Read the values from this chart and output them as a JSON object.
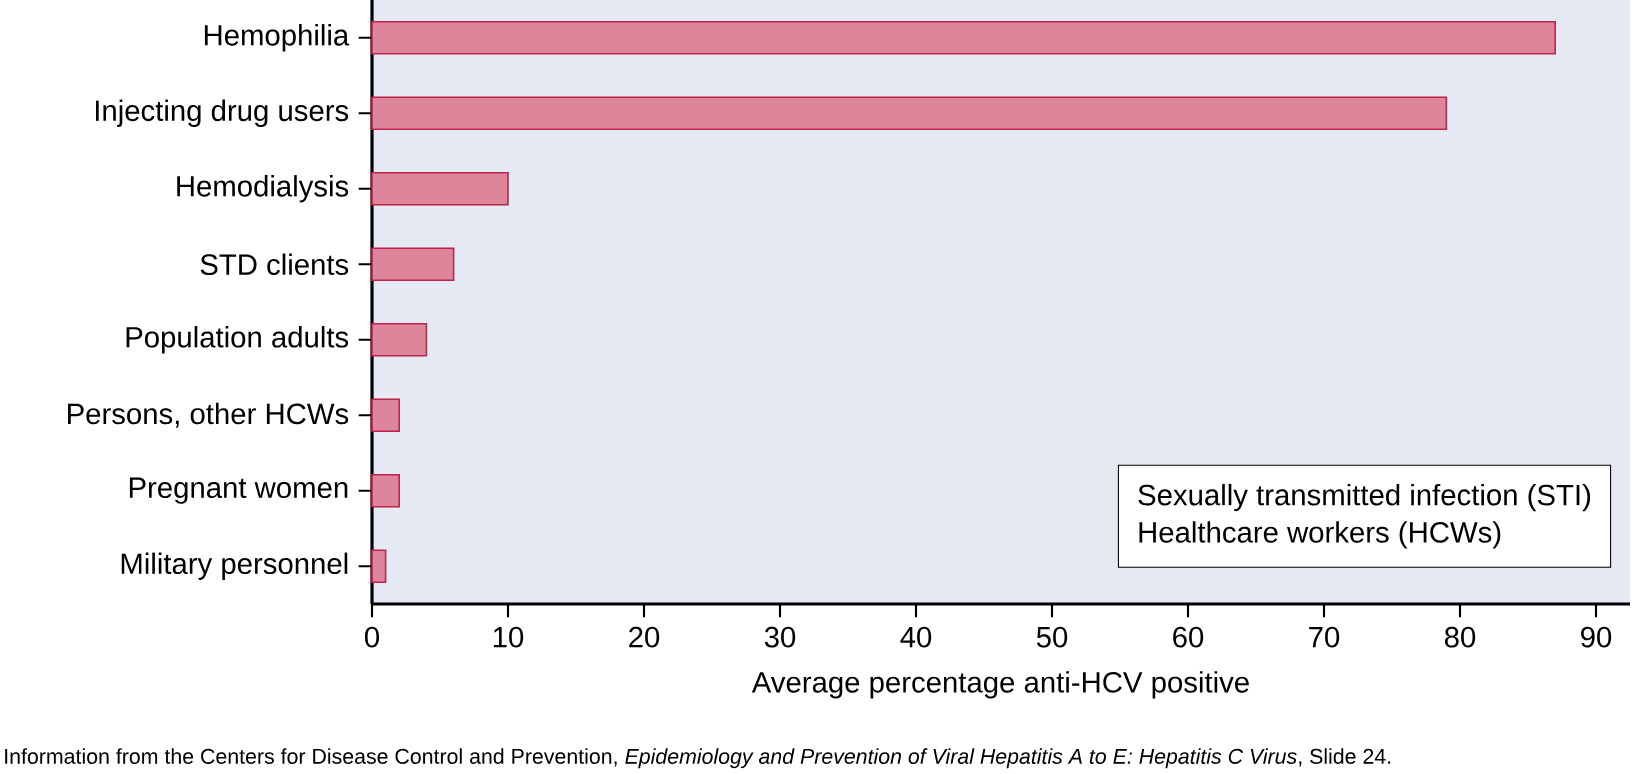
{
  "chart_data": {
    "type": "bar",
    "orientation": "horizontal",
    "categories": [
      "Hemophilia",
      "Injecting drug users",
      "Hemodialysis",
      "STD clients",
      "Population adults",
      "Persons, other HCWs",
      "Pregnant women",
      "Military personnel"
    ],
    "values": [
      87,
      79,
      10,
      6,
      4,
      2,
      2,
      1
    ],
    "color": "#c0224a",
    "xlabel": "Average percentage anti-HCV positive",
    "xlim": [
      0,
      92.5
    ],
    "xticks": [
      0,
      10,
      20,
      30,
      40,
      50,
      60,
      70,
      80,
      90
    ],
    "annotations": [
      "Sexually transmitted infection (STI)",
      "Healthcare workers (HCWs)",
      "Information from the Centers for Disease Control and Prevention, *Epidemiology and Prevention of Viral Hepatitis A to E: Hepatitis C Virus*, Slide 24."
    ],
    "grid": false
  }
}
